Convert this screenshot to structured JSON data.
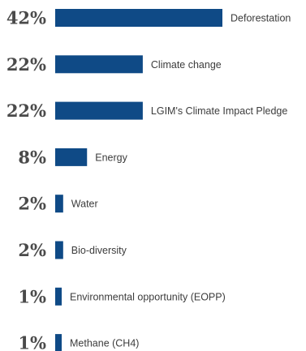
{
  "chart_data": {
    "type": "bar",
    "orientation": "horizontal",
    "categories": [
      "Deforestation",
      "Climate change",
      "LGIM's Climate Impact Pledge",
      "Energy",
      "Water",
      "Bio-diversity",
      "Environmental opportunity (EOPP)",
      "Methane (CH4)"
    ],
    "values": [
      42,
      22,
      22,
      8,
      2,
      2,
      1,
      1
    ],
    "value_labels": [
      "42%",
      "22%",
      "22%",
      "8%",
      "2%",
      "2%",
      "1%",
      "1%"
    ],
    "unit": "%",
    "xlim": [
      0,
      42
    ],
    "grid": false,
    "legend": "none",
    "bar_color": "#0f4a86"
  }
}
